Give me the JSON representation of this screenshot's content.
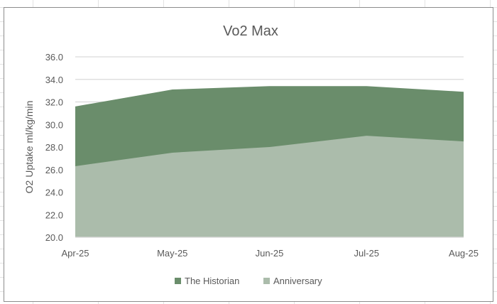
{
  "chart_data": {
    "type": "area",
    "title": "Vo2 Max",
    "xlabel": "",
    "ylabel": "O2 Uptake ml/kg/min",
    "categories": [
      "Apr-25",
      "May-25",
      "Jun-25",
      "Jul-25",
      "Aug-25"
    ],
    "ylim": [
      20,
      36
    ],
    "yticks": [
      "20.0",
      "22.0",
      "24.0",
      "26.0",
      "28.0",
      "30.0",
      "32.0",
      "34.0",
      "36.0"
    ],
    "grid": true,
    "legend": "bottom",
    "series": [
      {
        "name": "The Historian",
        "values": [
          31.6,
          33.1,
          33.4,
          33.4,
          32.9
        ],
        "color": "#6a8d6b"
      },
      {
        "name": "Anniversary",
        "values": [
          26.3,
          27.5,
          28.0,
          29.0,
          28.5
        ],
        "color": "#abbcab"
      }
    ]
  }
}
